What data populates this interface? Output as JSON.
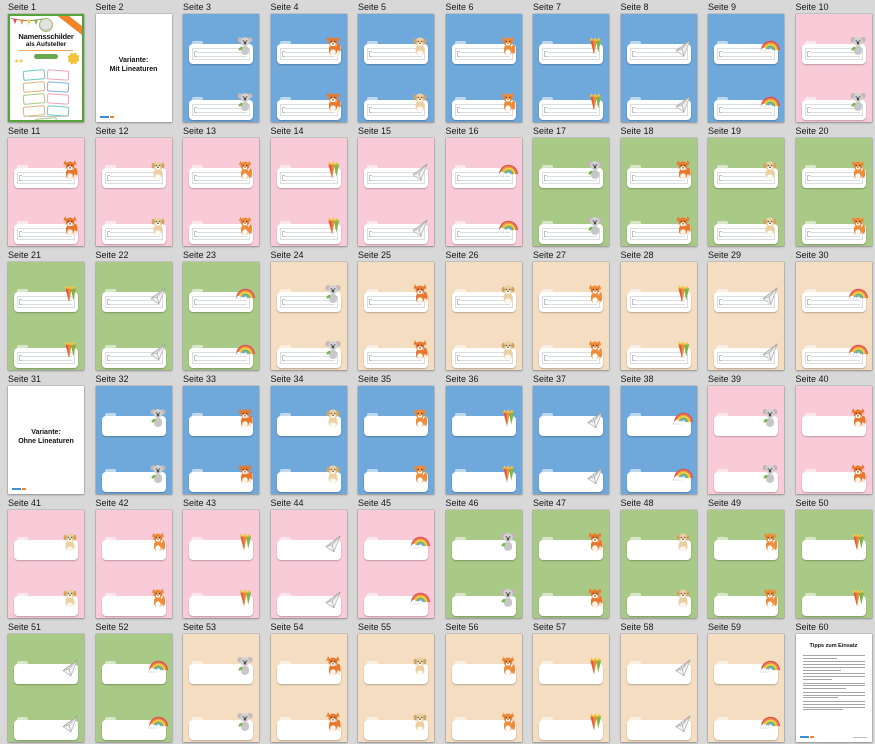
{
  "background": "#d8d8d8",
  "page_label_prefix": "Seite",
  "colors": {
    "blue": "#6fa9dc",
    "pink": "#f9cbd9",
    "green": "#a9c986",
    "tan": "#f4ddc1"
  },
  "cover": {
    "title_line1": "Namensschilder",
    "title_line2": "als Aufsteller"
  },
  "tips": {
    "title": "Tipps zum Einsatz"
  },
  "motifs": {
    "koala": "koala-icon",
    "fox": "fox-icon",
    "dog": "dog-icon",
    "cat": "cat-icon",
    "cone": "school-cone-icon",
    "plane": "paper-plane-icon",
    "rainbow": "rainbow-icon"
  },
  "pages": [
    {
      "n": 1,
      "type": "cover"
    },
    {
      "n": 2,
      "type": "variant",
      "lines": [
        "Variante:",
        "Mit Lineaturen"
      ]
    },
    {
      "n": 3,
      "type": "card",
      "color": "blue",
      "motif": "koala",
      "lined": true
    },
    {
      "n": 4,
      "type": "card",
      "color": "blue",
      "motif": "fox",
      "lined": true
    },
    {
      "n": 5,
      "type": "card",
      "color": "blue",
      "motif": "dog",
      "lined": true
    },
    {
      "n": 6,
      "type": "card",
      "color": "blue",
      "motif": "cat",
      "lined": true
    },
    {
      "n": 7,
      "type": "card",
      "color": "blue",
      "motif": "cone",
      "lined": true
    },
    {
      "n": 8,
      "type": "card",
      "color": "blue",
      "motif": "plane",
      "lined": true
    },
    {
      "n": 9,
      "type": "card",
      "color": "blue",
      "motif": "rainbow",
      "lined": true
    },
    {
      "n": 10,
      "type": "card",
      "color": "pink",
      "motif": "koala",
      "lined": true
    },
    {
      "n": 11,
      "type": "card",
      "color": "pink",
      "motif": "fox",
      "lined": true
    },
    {
      "n": 12,
      "type": "card",
      "color": "pink",
      "motif": "dog",
      "lined": true
    },
    {
      "n": 13,
      "type": "card",
      "color": "pink",
      "motif": "cat",
      "lined": true
    },
    {
      "n": 14,
      "type": "card",
      "color": "pink",
      "motif": "cone",
      "lined": true
    },
    {
      "n": 15,
      "type": "card",
      "color": "pink",
      "motif": "plane",
      "lined": true
    },
    {
      "n": 16,
      "type": "card",
      "color": "pink",
      "motif": "rainbow",
      "lined": true
    },
    {
      "n": 17,
      "type": "card",
      "color": "green",
      "motif": "koala",
      "lined": true
    },
    {
      "n": 18,
      "type": "card",
      "color": "green",
      "motif": "fox",
      "lined": true
    },
    {
      "n": 19,
      "type": "card",
      "color": "green",
      "motif": "dog",
      "lined": true
    },
    {
      "n": 20,
      "type": "card",
      "color": "green",
      "motif": "cat",
      "lined": true
    },
    {
      "n": 21,
      "type": "card",
      "color": "green",
      "motif": "cone",
      "lined": true
    },
    {
      "n": 22,
      "type": "card",
      "color": "green",
      "motif": "plane",
      "lined": true
    },
    {
      "n": 23,
      "type": "card",
      "color": "green",
      "motif": "rainbow",
      "lined": true
    },
    {
      "n": 24,
      "type": "card",
      "color": "tan",
      "motif": "koala",
      "lined": true
    },
    {
      "n": 25,
      "type": "card",
      "color": "tan",
      "motif": "fox",
      "lined": true
    },
    {
      "n": 26,
      "type": "card",
      "color": "tan",
      "motif": "dog",
      "lined": true
    },
    {
      "n": 27,
      "type": "card",
      "color": "tan",
      "motif": "cat",
      "lined": true
    },
    {
      "n": 28,
      "type": "card",
      "color": "tan",
      "motif": "cone",
      "lined": true
    },
    {
      "n": 29,
      "type": "card",
      "color": "tan",
      "motif": "plane",
      "lined": true
    },
    {
      "n": 30,
      "type": "card",
      "color": "tan",
      "motif": "rainbow",
      "lined": true
    },
    {
      "n": 31,
      "type": "variant",
      "lines": [
        "Variante:",
        "Ohne Lineaturen"
      ]
    },
    {
      "n": 32,
      "type": "card",
      "color": "blue",
      "motif": "koala",
      "lined": false
    },
    {
      "n": 33,
      "type": "card",
      "color": "blue",
      "motif": "fox",
      "lined": false
    },
    {
      "n": 34,
      "type": "card",
      "color": "blue",
      "motif": "dog",
      "lined": false
    },
    {
      "n": 35,
      "type": "card",
      "color": "blue",
      "motif": "cat",
      "lined": false
    },
    {
      "n": 36,
      "type": "card",
      "color": "blue",
      "motif": "cone",
      "lined": false
    },
    {
      "n": 37,
      "type": "card",
      "color": "blue",
      "motif": "plane",
      "lined": false
    },
    {
      "n": 38,
      "type": "card",
      "color": "blue",
      "motif": "rainbow",
      "lined": false
    },
    {
      "n": 39,
      "type": "card",
      "color": "pink",
      "motif": "koala",
      "lined": false
    },
    {
      "n": 40,
      "type": "card",
      "color": "pink",
      "motif": "fox",
      "lined": false
    },
    {
      "n": 41,
      "type": "card",
      "color": "pink",
      "motif": "dog",
      "lined": false
    },
    {
      "n": 42,
      "type": "card",
      "color": "pink",
      "motif": "cat",
      "lined": false
    },
    {
      "n": 43,
      "type": "card",
      "color": "pink",
      "motif": "cone",
      "lined": false
    },
    {
      "n": 44,
      "type": "card",
      "color": "pink",
      "motif": "plane",
      "lined": false
    },
    {
      "n": 45,
      "type": "card",
      "color": "pink",
      "motif": "rainbow",
      "lined": false
    },
    {
      "n": 46,
      "type": "card",
      "color": "green",
      "motif": "koala",
      "lined": false
    },
    {
      "n": 47,
      "type": "card",
      "color": "green",
      "motif": "fox",
      "lined": false
    },
    {
      "n": 48,
      "type": "card",
      "color": "green",
      "motif": "dog",
      "lined": false
    },
    {
      "n": 49,
      "type": "card",
      "color": "green",
      "motif": "cat",
      "lined": false
    },
    {
      "n": 50,
      "type": "card",
      "color": "green",
      "motif": "cone",
      "lined": false
    },
    {
      "n": 51,
      "type": "card",
      "color": "green",
      "motif": "plane",
      "lined": false
    },
    {
      "n": 52,
      "type": "card",
      "color": "green",
      "motif": "rainbow",
      "lined": false
    },
    {
      "n": 53,
      "type": "card",
      "color": "tan",
      "motif": "koala",
      "lined": false
    },
    {
      "n": 54,
      "type": "card",
      "color": "tan",
      "motif": "fox",
      "lined": false
    },
    {
      "n": 55,
      "type": "card",
      "color": "tan",
      "motif": "dog",
      "lined": false
    },
    {
      "n": 56,
      "type": "card",
      "color": "tan",
      "motif": "cat",
      "lined": false
    },
    {
      "n": 57,
      "type": "card",
      "color": "tan",
      "motif": "cone",
      "lined": false
    },
    {
      "n": 58,
      "type": "card",
      "color": "tan",
      "motif": "plane",
      "lined": false
    },
    {
      "n": 59,
      "type": "card",
      "color": "tan",
      "motif": "rainbow",
      "lined": false
    },
    {
      "n": 60,
      "type": "tips"
    }
  ]
}
